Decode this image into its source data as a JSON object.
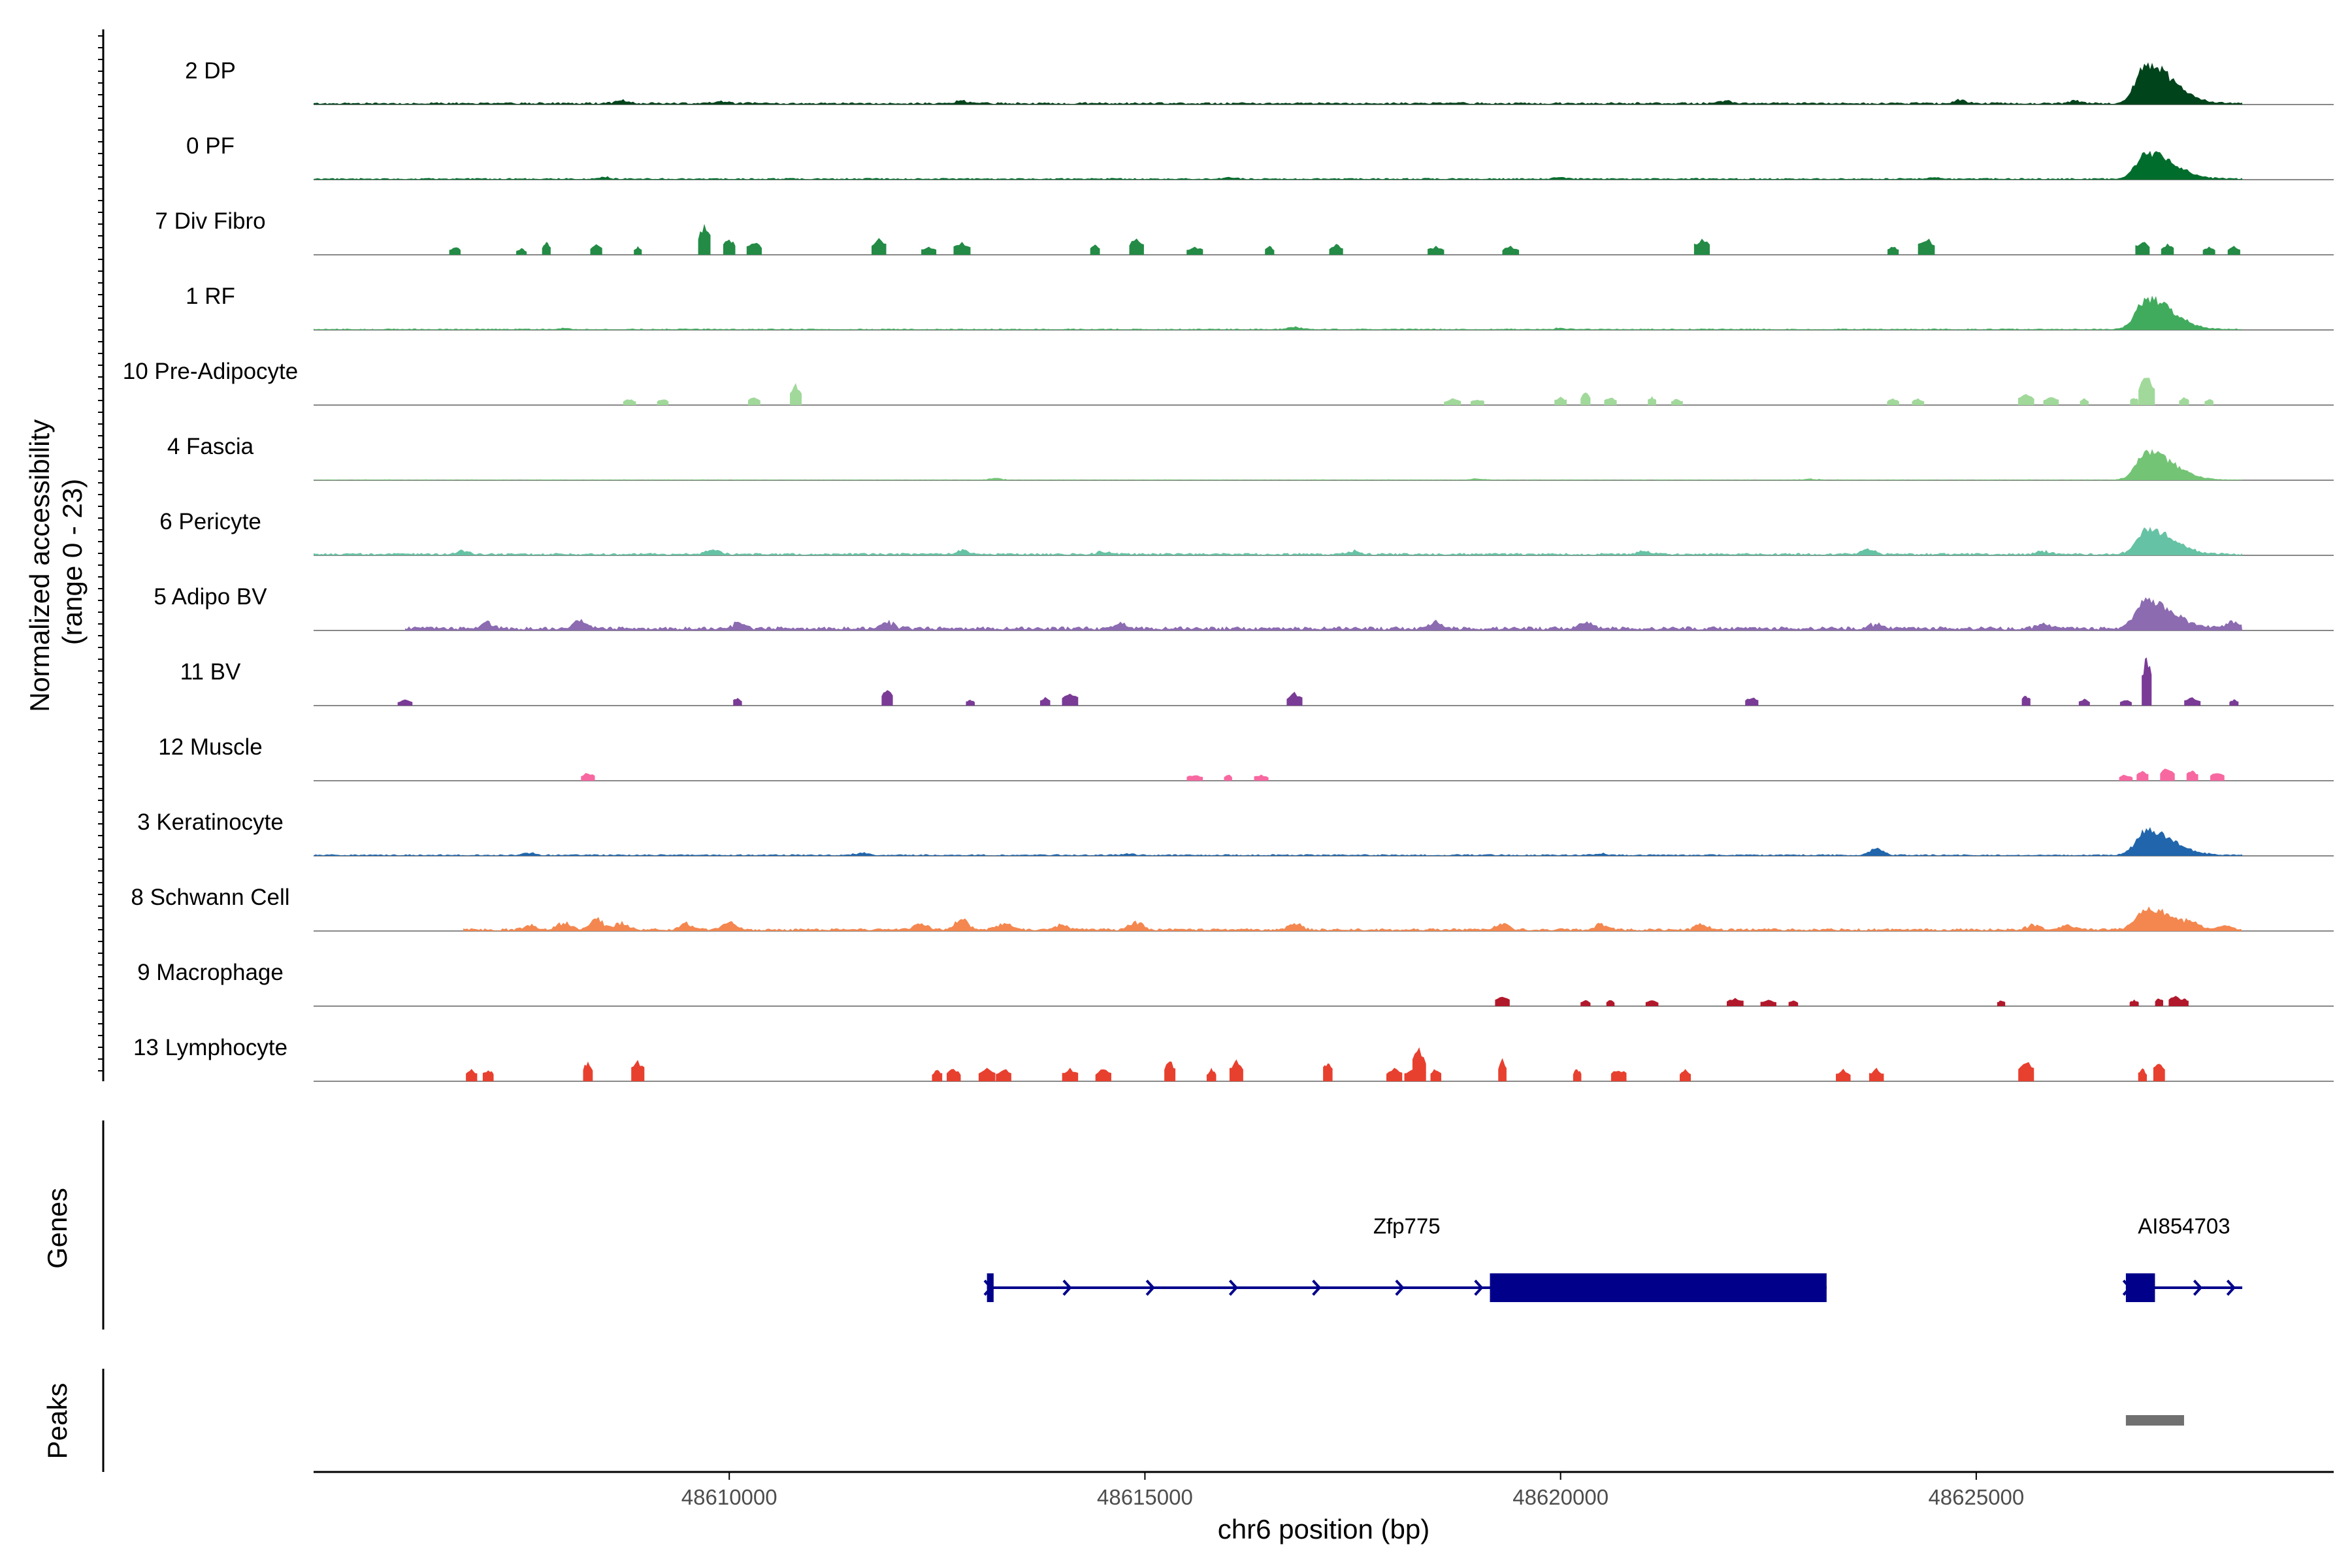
{
  "chart_data": {
    "type": "area",
    "title": "",
    "xlabel": "chr6 position (bp)",
    "ylabel": "Normalized accessibility\n(range 0 - 23)",
    "ylabel_lines": [
      "Normalized accessibility",
      "(range 0 - 23)"
    ],
    "ylim": [
      0,
      23
    ],
    "xlim": [
      48605000,
      48629300
    ],
    "x_ticks": [
      48610000,
      48615000,
      48620000,
      48625000
    ],
    "x_tick_labels": [
      "48610000",
      "48615000",
      "48620000",
      "48625000"
    ],
    "genes_label": "Genes",
    "peaks_label": "Peaks",
    "tracks": [
      {
        "name": "2 DP",
        "color": "#00441b",
        "style": "continuous",
        "x_start": 48605000,
        "x_end": 48628200,
        "base": 0.35,
        "bumps": [
          [
            48608700,
            0.8
          ],
          [
            48609900,
            0.6
          ],
          [
            48612800,
            0.6
          ],
          [
            48622000,
            0.6
          ],
          [
            48624800,
            1.0
          ],
          [
            48626200,
            0.7
          ]
        ],
        "peak_center": 48627050,
        "peak_height": 10
      },
      {
        "name": "0 PF",
        "color": "#006d2c",
        "style": "continuous",
        "x_start": 48605000,
        "x_end": 48628200,
        "base": 0.25,
        "bumps": [
          [
            48608500,
            0.4
          ],
          [
            48616000,
            0.4
          ],
          [
            48620000,
            0.4
          ],
          [
            48624500,
            0.4
          ]
        ],
        "peak_center": 48627050,
        "peak_height": 7
      },
      {
        "name": "7 Div Fibro",
        "color": "#238b45",
        "style": "sparse",
        "x_start": 48606500,
        "x_end": 48628200,
        "spikes": [
          [
            48606700,
            2
          ],
          [
            48607500,
            1.5
          ],
          [
            48607800,
            3
          ],
          [
            48608400,
            2.5
          ],
          [
            48608900,
            2
          ],
          [
            48609700,
            7
          ],
          [
            48610000,
            4
          ],
          [
            48610300,
            3
          ],
          [
            48611800,
            4
          ],
          [
            48612400,
            2
          ],
          [
            48612800,
            3
          ],
          [
            48614400,
            2.5
          ],
          [
            48614900,
            4
          ],
          [
            48615600,
            2
          ],
          [
            48616500,
            2
          ],
          [
            48617300,
            2.5
          ],
          [
            48618500,
            2
          ],
          [
            48619400,
            2
          ],
          [
            48621700,
            4
          ],
          [
            48624000,
            2
          ],
          [
            48624400,
            4
          ],
          [
            48627000,
            3.5
          ],
          [
            48627300,
            2.5
          ],
          [
            48627800,
            2
          ],
          [
            48628100,
            2
          ]
        ]
      },
      {
        "name": "1 RF",
        "color": "#41ab5d",
        "style": "continuous",
        "x_start": 48605000,
        "x_end": 48628200,
        "base": 0.2,
        "bumps": [
          [
            48608000,
            0.3
          ],
          [
            48616800,
            0.7
          ],
          [
            48620000,
            0.3
          ]
        ],
        "peak_center": 48627050,
        "peak_height": 8
      },
      {
        "name": "10 Pre-Adipocyte",
        "color": "#a1d99b",
        "style": "sparse",
        "x_start": 48608600,
        "x_end": 48628000,
        "spikes": [
          [
            48608800,
            1.5
          ],
          [
            48609200,
            1.5
          ],
          [
            48610300,
            2
          ],
          [
            48610800,
            5
          ],
          [
            48618700,
            1.5
          ],
          [
            48619000,
            1.5
          ],
          [
            48620000,
            2
          ],
          [
            48620300,
            3
          ],
          [
            48620600,
            2
          ],
          [
            48621100,
            2
          ],
          [
            48621400,
            1.5
          ],
          [
            48624000,
            1.5
          ],
          [
            48624300,
            1.5
          ],
          [
            48625600,
            2.5
          ],
          [
            48625900,
            2
          ],
          [
            48626300,
            1.5
          ],
          [
            48626900,
            2
          ],
          [
            48627050,
            7
          ],
          [
            48627500,
            2
          ],
          [
            48627800,
            1.5
          ]
        ]
      },
      {
        "name": "4 Fascia",
        "color": "#74c476",
        "style": "continuous",
        "x_start": 48605000,
        "x_end": 48628200,
        "base": 0.12,
        "bumps": [
          [
            48613200,
            0.4
          ],
          [
            48619000,
            0.3
          ],
          [
            48623000,
            0.3
          ]
        ],
        "peak_center": 48627050,
        "peak_height": 7.5
      },
      {
        "name": "6 Pericyte",
        "color": "#66c2a4",
        "style": "continuous",
        "x_start": 48605000,
        "x_end": 48628200,
        "base": 0.35,
        "bumps": [
          [
            48606800,
            0.9
          ],
          [
            48609800,
            1.2
          ],
          [
            48612800,
            1.0
          ],
          [
            48614500,
            0.7
          ],
          [
            48617500,
            0.8
          ],
          [
            48621000,
            0.8
          ],
          [
            48623700,
            1.3
          ],
          [
            48625800,
            0.9
          ]
        ],
        "peak_center": 48627050,
        "peak_height": 6.5
      },
      {
        "name": "5 Adipo BV",
        "color": "#8c6bb1",
        "style": "continuous",
        "x_start": 48606100,
        "x_end": 48628200,
        "base": 0.6,
        "bumps": [
          [
            48607100,
            1.5
          ],
          [
            48608200,
            1.8
          ],
          [
            48610100,
            1.3
          ],
          [
            48611900,
            1.8
          ],
          [
            48614700,
            1.3
          ],
          [
            48618500,
            1.6
          ],
          [
            48620300,
            1.8
          ],
          [
            48623800,
            1.3
          ],
          [
            48625800,
            1.3
          ],
          [
            48628100,
            1.6
          ]
        ],
        "peak_center": 48627050,
        "peak_height": 7.5
      },
      {
        "name": "11 BV",
        "color": "#7a3b96",
        "style": "sparse",
        "x_start": 48606100,
        "x_end": 48628200,
        "spikes": [
          [
            48606100,
            1.5
          ],
          [
            48610100,
            2
          ],
          [
            48611900,
            4
          ],
          [
            48612900,
            1.5
          ],
          [
            48613800,
            2
          ],
          [
            48614100,
            3
          ],
          [
            48616800,
            3
          ],
          [
            48622300,
            2
          ],
          [
            48625600,
            2.5
          ],
          [
            48626300,
            1.5
          ],
          [
            48626800,
            1.5
          ],
          [
            48627050,
            12
          ],
          [
            48627600,
            2
          ],
          [
            48628100,
            1.5
          ]
        ]
      },
      {
        "name": "12 Muscle",
        "color": "#f768a1",
        "style": "sparse",
        "x_start": 48608100,
        "x_end": 48628000,
        "spikes": [
          [
            48608300,
            2
          ],
          [
            48615600,
            1.5
          ],
          [
            48616000,
            1.5
          ],
          [
            48616400,
            1.5
          ],
          [
            48626800,
            1.5
          ],
          [
            48627000,
            2.5
          ],
          [
            48627300,
            3
          ],
          [
            48627600,
            2.5
          ],
          [
            48627900,
            2
          ]
        ]
      },
      {
        "name": "3 Keratinocyte",
        "color": "#2166ac",
        "style": "continuous",
        "x_start": 48605000,
        "x_end": 48628200,
        "base": 0.25,
        "bumps": [
          [
            48607600,
            0.5
          ],
          [
            48611600,
            0.6
          ],
          [
            48614800,
            0.4
          ],
          [
            48620500,
            0.4
          ],
          [
            48623800,
            1.8
          ]
        ],
        "peak_center": 48627050,
        "peak_height": 6.5
      },
      {
        "name": "8 Schwann Cell",
        "color": "#f4874f",
        "style": "continuous",
        "x_start": 48606800,
        "x_end": 48628200,
        "base": 0.4,
        "bumps": [
          [
            48607600,
            1.2
          ],
          [
            48608000,
            2.0
          ],
          [
            48608400,
            3.0
          ],
          [
            48608700,
            1.8
          ],
          [
            48609500,
            1.6
          ],
          [
            48610000,
            2.0
          ],
          [
            48612300,
            1.8
          ],
          [
            48612800,
            3.0
          ],
          [
            48613300,
            1.8
          ],
          [
            48614000,
            1.5
          ],
          [
            48614900,
            2.0
          ],
          [
            48616800,
            1.8
          ],
          [
            48619300,
            1.5
          ],
          [
            48620500,
            1.4
          ],
          [
            48621700,
            1.4
          ],
          [
            48625700,
            1.5
          ],
          [
            48626100,
            1.1
          ],
          [
            48627600,
            1.3
          ],
          [
            48628000,
            1.1
          ]
        ],
        "peak_center": 48627050,
        "peak_height": 5.5
      },
      {
        "name": "9 Macrophage",
        "color": "#b2182b",
        "style": "sparse",
        "x_start": 48619200,
        "x_end": 48628000,
        "spikes": [
          [
            48619300,
            2.5
          ],
          [
            48620300,
            1.5
          ],
          [
            48620600,
            1.5
          ],
          [
            48621100,
            1.5
          ],
          [
            48622100,
            2
          ],
          [
            48622500,
            1.5
          ],
          [
            48622800,
            1.5
          ],
          [
            48625300,
            1.5
          ],
          [
            48626900,
            1.5
          ],
          [
            48627200,
            2.0
          ],
          [
            48627400,
            2.5
          ],
          [
            48627500,
            2.0
          ]
        ]
      },
      {
        "name": "13 Lymphocyte",
        "color": "#e8402f",
        "style": "sparse",
        "x_start": 48606700,
        "x_end": 48628000,
        "spikes": [
          [
            48606900,
            3
          ],
          [
            48607100,
            3
          ],
          [
            48608300,
            5
          ],
          [
            48608900,
            5
          ],
          [
            48612500,
            3
          ],
          [
            48612700,
            3
          ],
          [
            48613100,
            3
          ],
          [
            48613300,
            3
          ],
          [
            48614100,
            3
          ],
          [
            48614500,
            3
          ],
          [
            48615300,
            5
          ],
          [
            48615800,
            3
          ],
          [
            48616100,
            5
          ],
          [
            48617200,
            5
          ],
          [
            48618000,
            3
          ],
          [
            48618200,
            3
          ],
          [
            48618300,
            8
          ],
          [
            48618500,
            3
          ],
          [
            48619300,
            5
          ],
          [
            48620200,
            3
          ],
          [
            48620700,
            3
          ],
          [
            48621500,
            3
          ],
          [
            48623400,
            3
          ],
          [
            48623800,
            3
          ],
          [
            48625600,
            5
          ],
          [
            48627000,
            3
          ],
          [
            48627200,
            5
          ]
        ]
      }
    ],
    "genes": [
      {
        "name": "Zfp775",
        "strand": "+",
        "start": 48613100,
        "end": 48623200,
        "exons": [
          [
            48613100,
            48613180
          ],
          [
            48619150,
            48623200
          ]
        ],
        "arrows": [
          48613150,
          48614100,
          48615100,
          48616100,
          48617100,
          48618100,
          48619050
        ]
      },
      {
        "name": "AI854703",
        "strand": "+",
        "start": 48626800,
        "end": 48628200,
        "exons": [
          [
            48626800,
            48627150
          ]
        ],
        "arrows": [
          48626850,
          48627700,
          48628100
        ]
      }
    ],
    "peaks": [
      [
        48626800,
        48627500
      ]
    ]
  }
}
